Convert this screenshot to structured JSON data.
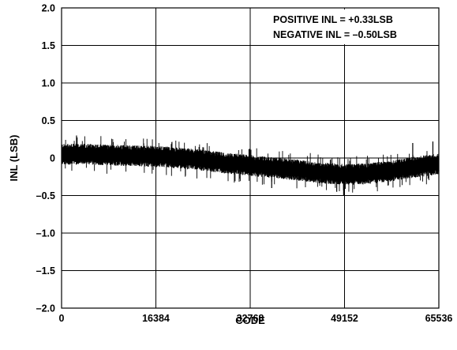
{
  "chart_data": {
    "type": "line",
    "title": "",
    "xlabel": "CODE",
    "ylabel": "INL (LSB)",
    "xlim": [
      0,
      65536
    ],
    "ylim": [
      -2.0,
      2.0
    ],
    "xticks": [
      0,
      16384,
      32768,
      49152,
      65536
    ],
    "xtick_labels": [
      "0",
      "16384",
      "32768",
      "49152",
      "65536"
    ],
    "yticks": [
      2.0,
      1.5,
      1.0,
      0.5,
      0,
      -0.5,
      -1.0,
      -1.5,
      -2.0
    ],
    "ytick_labels": [
      "2.0",
      "1.5",
      "1.0",
      "0.5",
      "0",
      "–0.5",
      "–1.0",
      "–1.5",
      "–2.0"
    ],
    "grid": true,
    "annotations": [
      "POSITIVE INL = +0.33LSB",
      "NEGATIVE INL = –0.50LSB"
    ],
    "series": [
      {
        "color": "#000000",
        "x": [
          0,
          4096,
          8192,
          12288,
          16384,
          20480,
          24576,
          28672,
          32768,
          36864,
          40960,
          45056,
          49152,
          53248,
          57344,
          61440,
          65536
        ],
        "y": [
          0.05,
          0.05,
          0.04,
          0.03,
          0.02,
          0.0,
          -0.03,
          -0.07,
          -0.1,
          -0.13,
          -0.16,
          -0.2,
          -0.22,
          -0.21,
          -0.17,
          -0.12,
          -0.08
        ],
        "band_halfwidth": 0.14,
        "max": 0.33,
        "min": -0.5
      }
    ]
  }
}
